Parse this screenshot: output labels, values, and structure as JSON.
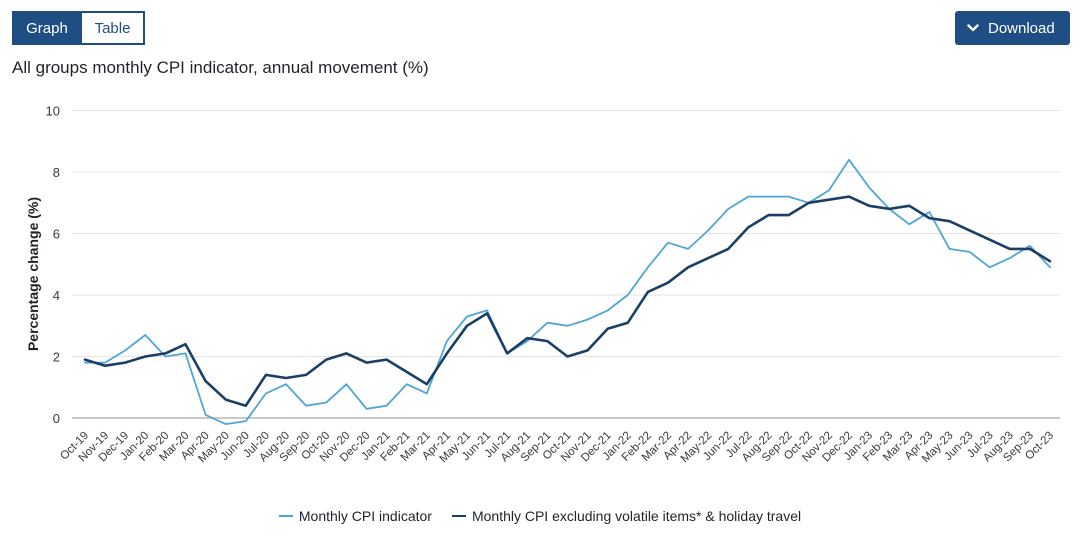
{
  "tabs": [
    {
      "label": "Graph",
      "active": true
    },
    {
      "label": "Table",
      "active": false
    }
  ],
  "download": {
    "label": "Download",
    "icon": "chevron-down-icon"
  },
  "colors": {
    "accent": "#1f4e85",
    "series1": "#4fa6d6",
    "series2": "#1a3f66",
    "grid": "#e4e4e4",
    "zero": "#b5b5b5"
  },
  "chart_data": {
    "type": "line",
    "title": "All groups monthly CPI indicator, annual movement (%)",
    "xlabel": "",
    "ylabel": "Percentage change (%)",
    "ylim": [
      -1,
      10
    ],
    "yticks": [
      0,
      2,
      4,
      6,
      8,
      10
    ],
    "grid": true,
    "legend_position": "bottom",
    "categories": [
      "Oct-19",
      "Nov-19",
      "Dec-19",
      "Jan-20",
      "Feb-20",
      "Mar-20",
      "Apr-20",
      "May-20",
      "Jun-20",
      "Jul-20",
      "Aug-20",
      "Sep-20",
      "Oct-20",
      "Nov-20",
      "Dec-20",
      "Jan-21",
      "Feb-21",
      "Mar-21",
      "Apr-21",
      "May-21",
      "Jun-21",
      "Jul-21",
      "Aug-21",
      "Sep-21",
      "Oct-21",
      "Nov-21",
      "Dec-21",
      "Jan-22",
      "Feb-22",
      "Mar-22",
      "Apr-22",
      "May-22",
      "Jun-22",
      "Jul-22",
      "Aug-22",
      "Sep-22",
      "Oct-22",
      "Nov-22",
      "Dec-22",
      "Jan-23",
      "Feb-23",
      "Mar-23",
      "Apr-23",
      "May-23",
      "Jun-23",
      "Jul-23",
      "Aug-23",
      "Sep-23",
      "Oct-23"
    ],
    "series": [
      {
        "name": "Monthly CPI indicator",
        "color": "#4fa6d6",
        "values": [
          1.8,
          1.8,
          2.2,
          2.7,
          2.0,
          2.1,
          0.1,
          -0.2,
          -0.1,
          0.8,
          1.1,
          0.4,
          0.5,
          1.1,
          0.3,
          0.4,
          1.1,
          0.8,
          2.5,
          3.3,
          3.5,
          2.1,
          2.5,
          3.1,
          3.0,
          3.2,
          3.5,
          4.0,
          4.9,
          5.7,
          5.5,
          6.1,
          6.8,
          7.2,
          7.2,
          7.2,
          7.0,
          7.4,
          8.4,
          7.5,
          6.8,
          6.3,
          6.7,
          5.5,
          5.4,
          4.9,
          5.2,
          5.6,
          4.9
        ]
      },
      {
        "name": "Monthly CPI excluding volatile items* & holiday travel",
        "color": "#1a3f66",
        "values": [
          1.9,
          1.7,
          1.8,
          2.0,
          2.1,
          2.4,
          1.2,
          0.6,
          0.4,
          1.4,
          1.3,
          1.4,
          1.9,
          2.1,
          1.8,
          1.9,
          1.5,
          1.1,
          2.1,
          3.0,
          3.4,
          2.1,
          2.6,
          2.5,
          2.0,
          2.2,
          2.9,
          3.1,
          4.1,
          4.4,
          4.9,
          5.2,
          5.5,
          6.2,
          6.6,
          6.6,
          7.0,
          7.1,
          7.2,
          6.9,
          6.8,
          6.9,
          6.5,
          6.4,
          6.1,
          5.8,
          5.5,
          5.5,
          5.1
        ]
      }
    ]
  }
}
